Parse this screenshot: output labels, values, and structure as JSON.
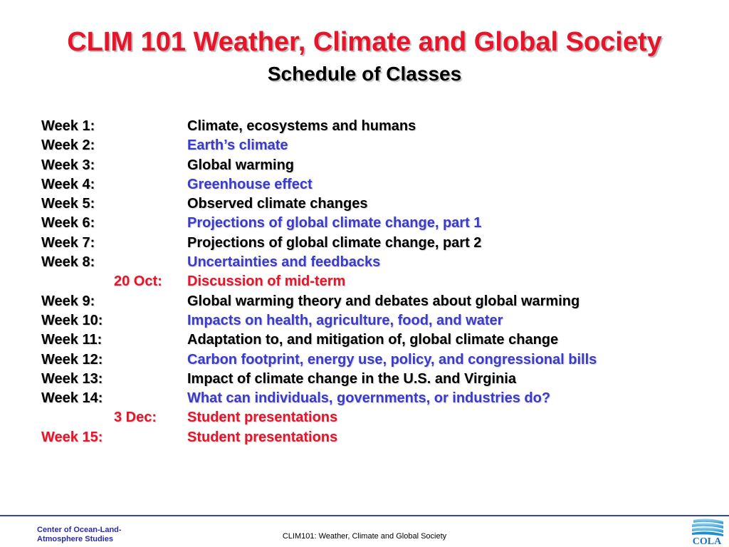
{
  "slide": {
    "title": "CLIM 101 Weather, Climate and Global Society",
    "subtitle": "Schedule of Classes"
  },
  "schedule": [
    {
      "week": "Week 1:",
      "topic": "Climate, ecosystems and humans",
      "week_color": "black",
      "topic_color": "black",
      "indent": false
    },
    {
      "week": "Week 2:",
      "topic": "Earth’s climate",
      "week_color": "black",
      "topic_color": "blue",
      "indent": false
    },
    {
      "week": "Week 3:",
      "topic": "Global warming",
      "week_color": "black",
      "topic_color": "black",
      "indent": false
    },
    {
      "week": "Week 4:",
      "topic": "Greenhouse effect",
      "week_color": "black",
      "topic_color": "blue",
      "indent": false
    },
    {
      "week": "Week 5:",
      "topic": "Observed climate changes",
      "week_color": "black",
      "topic_color": "black",
      "indent": false
    },
    {
      "week": "Week 6:",
      "topic": "Projections of global climate change, part 1",
      "week_color": "black",
      "topic_color": "blue",
      "indent": false
    },
    {
      "week": "Week 7:",
      "topic": "Projections of global climate change, part 2",
      "week_color": "black",
      "topic_color": "black",
      "indent": false
    },
    {
      "week": "Week 8:",
      "topic": "Uncertainties and feedbacks",
      "week_color": "black",
      "topic_color": "blue",
      "indent": false
    },
    {
      "week": "20 Oct:",
      "topic": "Discussion of mid-term",
      "week_color": "red",
      "topic_color": "red",
      "indent": true
    },
    {
      "week": "Week 9:",
      "topic": "Global warming theory and debates about global warming",
      "week_color": "black",
      "topic_color": "black",
      "indent": false
    },
    {
      "week": "Week 10:",
      "topic": "Impacts on health, agriculture, food, and water",
      "week_color": "black",
      "topic_color": "blue",
      "indent": false
    },
    {
      "week": "Week 11:",
      "topic": "Adaptation to, and mitigation of, global climate change",
      "week_color": "black",
      "topic_color": "black",
      "indent": false
    },
    {
      "week": "Week 12:",
      "topic": "Carbon footprint, energy use, policy, and congressional bills",
      "week_color": "black",
      "topic_color": "blue",
      "indent": false
    },
    {
      "week": "Week 13:",
      "topic": "Impact of climate change in the U.S. and Virginia",
      "week_color": "black",
      "topic_color": "black",
      "indent": false
    },
    {
      "week": "Week 14:",
      "topic": "What can individuals, governments, or industries do?",
      "week_color": "black",
      "topic_color": "blue",
      "indent": false
    },
    {
      "week": "3 Dec:",
      "topic": "Student presentations",
      "week_color": "red",
      "topic_color": "red",
      "indent": true
    },
    {
      "week": "Week 15:",
      "topic": "Student presentations",
      "week_color": "red",
      "topic_color": "red",
      "indent": false
    }
  ],
  "footer": {
    "org_line1": "Center of Ocean-Land-",
    "org_line2": "Atmosphere Studies",
    "course": "CLIM101: Weather, Climate and Global Society",
    "logo_text": "COLA"
  },
  "colors": {
    "black": "#000000",
    "blue": "#3a3acf",
    "red": "#e8142a",
    "footer_blue": "#2a2aa8"
  },
  "icons": {
    "logo": "cola-waves-logo"
  }
}
